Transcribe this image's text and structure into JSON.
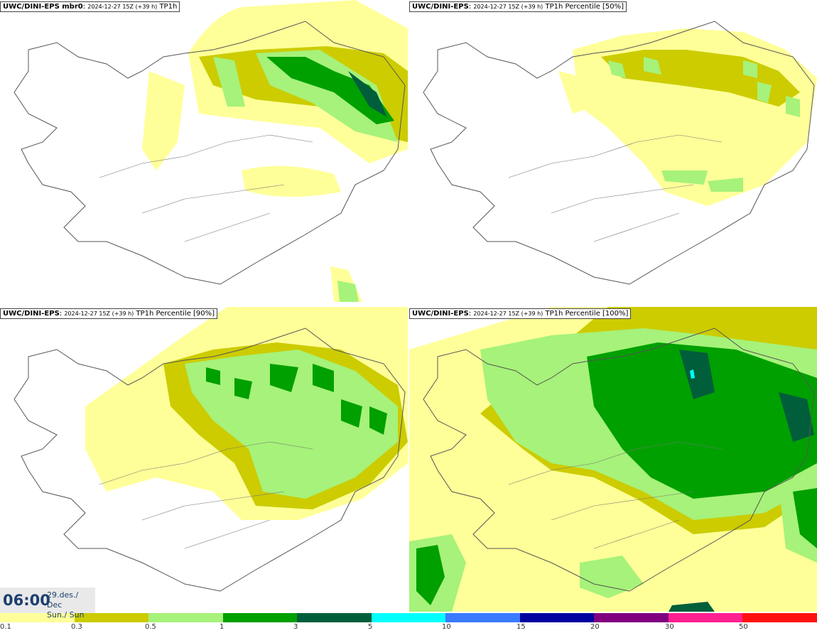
{
  "panels": [
    {
      "model": "UWC/DINI-EPS mbr0",
      "run": "2024-12-27 15Z (+39 h)",
      "product": "TP1h"
    },
    {
      "model": "UWC/DINI-EPS",
      "run": "2024-12-27 15Z (+39 h)",
      "product": "TP1h Percentile [50%]"
    },
    {
      "model": "UWC/DINI-EPS",
      "run": "2024-12-27 15Z (+39 h)",
      "product": "TP1h Percentile [90%]"
    },
    {
      "model": "UWC/DINI-EPS",
      "run": "2024-12-27 15Z (+39 h)",
      "product": "TP1h Percentile [100%]"
    }
  ],
  "valid_time": {
    "time": "06:00",
    "date": "29.des./ Dec",
    "weekday": "Sun./ Sun"
  },
  "legend": {
    "colors": [
      "#ffff99",
      "#cccc00",
      "#a6f27a",
      "#00a000",
      "#005e3a",
      "#00ffff",
      "#3a7aff",
      "#0000a0",
      "#800080",
      "#ff2090",
      "#ff1010"
    ],
    "labels": [
      "0.1",
      "0.3",
      "0.5",
      "1",
      "3",
      "5",
      "10",
      "15",
      "20",
      "30",
      "50"
    ]
  }
}
